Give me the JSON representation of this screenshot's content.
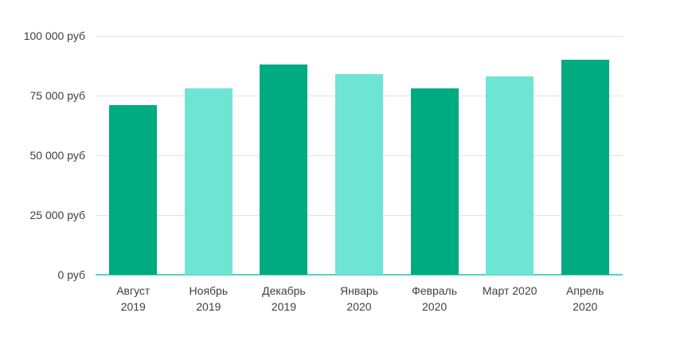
{
  "chart_data": {
    "type": "bar",
    "categories": [
      "Август\n2019",
      "Ноябрь\n2019",
      "Декабрь\n2019",
      "Январь\n2020",
      "Февраль\n2020",
      "Март 2020",
      "Апрель\n2020"
    ],
    "values": [
      71000,
      78000,
      88000,
      84000,
      78000,
      83000,
      90000
    ],
    "bar_colors": [
      "#00ab82",
      "#6ee4d5",
      "#00ab82",
      "#6ee4d5",
      "#00ab82",
      "#6ee4d5",
      "#00ab82"
    ],
    "title": "",
    "xlabel": "",
    "ylabel": "",
    "ylim": [
      0,
      100000
    ],
    "yticks": [
      {
        "value": 0,
        "label": "0 руб"
      },
      {
        "value": 25000,
        "label": "25 000 руб"
      },
      {
        "value": 50000,
        "label": "50 000 руб"
      },
      {
        "value": 75000,
        "label": "75 000 руб"
      },
      {
        "value": 100000,
        "label": "100 000 руб"
      }
    ],
    "grid": true,
    "legend_position": "none",
    "colors": {
      "bar_dark": "#00ab82",
      "bar_light": "#6ee4d5",
      "baseline": "#53d6be",
      "gridline": "#e2e2e2",
      "axis_text": "#3f3f3f",
      "background": "#ffffff"
    }
  }
}
